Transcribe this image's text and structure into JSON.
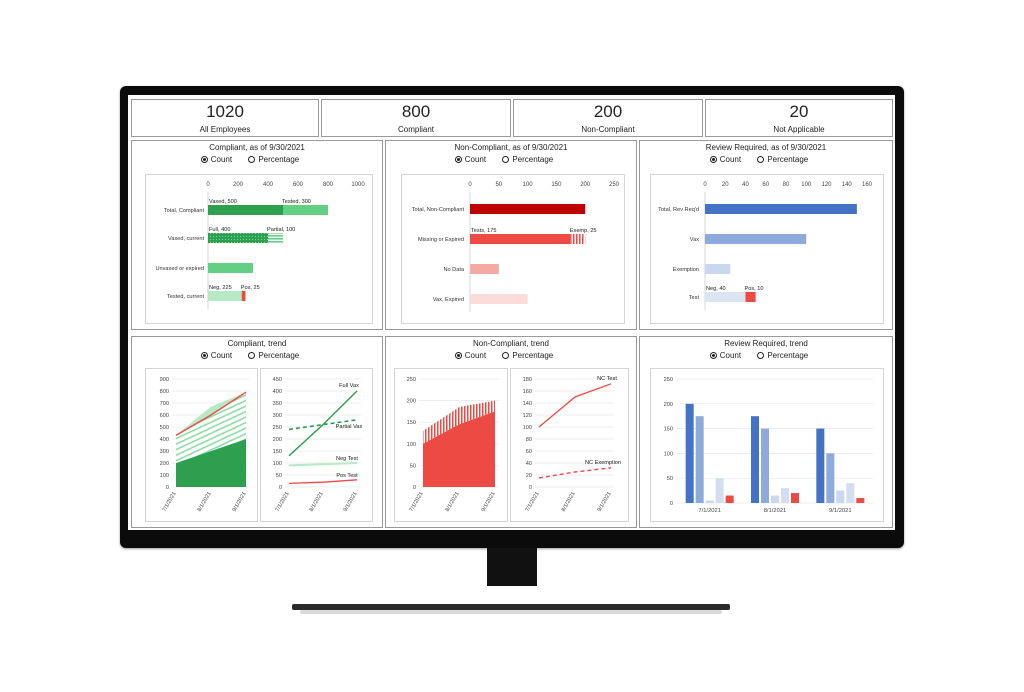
{
  "kpis": [
    {
      "value": "1020",
      "label": "All Employees"
    },
    {
      "value": "800",
      "label": "Compliant"
    },
    {
      "value": "200",
      "label": "Non-Compliant"
    },
    {
      "value": "20",
      "label": "Not Applicable"
    }
  ],
  "radio_labels": {
    "count": "Count",
    "percentage": "Percentage"
  },
  "panels": {
    "compliant": {
      "title": "Compliant, as of 9/30/2021"
    },
    "noncompliant": {
      "title": "Non-Compliant, as of 9/30/2021"
    },
    "review": {
      "title": "Review Required, as of 9/30/2021"
    },
    "compliant_trend": {
      "title": "Compliant, trend"
    },
    "noncompliant_trend": {
      "title": "Non-Compliant, trend"
    },
    "review_trend": {
      "title": "Review Required, trend"
    }
  },
  "colors": {
    "green_dark": "#2e9e4f",
    "green_light": "#63cf85",
    "green_pale": "#b7e9c5",
    "red_dark": "#c00000",
    "red": "#ee4a44",
    "red_pale": "#f9c9c4",
    "blue_dark": "#4472c4",
    "blue_mid": "#8eaadb",
    "blue_pale": "#c9d7ef"
  },
  "chart_data": [
    {
      "type": "bar",
      "orientation": "horizontal",
      "categories": [
        "Total, Compliant",
        "Vaxed, current",
        "Unvaxed or expired",
        "Tested, current"
      ],
      "xlim": [
        0,
        1000
      ],
      "xticks": [
        "0",
        "200",
        "400",
        "600",
        "800",
        "1000"
      ],
      "segments": [
        [
          {
            "value": 500,
            "label": "Vaxed, 500"
          },
          {
            "value": 300,
            "label": "Tested, 300"
          }
        ],
        [
          {
            "value": 400,
            "label": "Full, 400"
          },
          {
            "value": 100,
            "label": "Partial, 100"
          }
        ],
        [
          {
            "value": 300,
            "label": ""
          }
        ],
        [
          {
            "value": 225,
            "label": "Neg, 225"
          },
          {
            "value": 25,
            "label": "Pos, 25"
          }
        ]
      ]
    },
    {
      "type": "bar",
      "orientation": "horizontal",
      "categories": [
        "Total, Non-Compliant",
        "Missing or Expired",
        "No Data",
        "Vax, Expired"
      ],
      "xlim": [
        0,
        250
      ],
      "xticks": [
        "0",
        "50",
        "100",
        "150",
        "200",
        "250"
      ],
      "segments": [
        [
          {
            "value": 200,
            "label": ""
          }
        ],
        [
          {
            "value": 175,
            "label": "Tests, 175"
          },
          {
            "value": 25,
            "label": "Exemp, 25"
          }
        ],
        [
          {
            "value": 50,
            "label": ""
          }
        ],
        [
          {
            "value": 100,
            "label": ""
          }
        ]
      ]
    },
    {
      "type": "bar",
      "orientation": "horizontal",
      "categories": [
        "Total, Rev Req'd",
        "Vax",
        "Exemption",
        "Test"
      ],
      "xlim": [
        0,
        160
      ],
      "xticks": [
        "0",
        "20",
        "40",
        "60",
        "80",
        "100",
        "120",
        "140",
        "160"
      ],
      "segments": [
        [
          {
            "value": 150,
            "label": ""
          }
        ],
        [
          {
            "value": 100,
            "label": ""
          }
        ],
        [
          {
            "value": 25,
            "label": ""
          }
        ],
        [
          {
            "value": 40,
            "label": "Neg, 40"
          },
          {
            "value": 10,
            "label": "Pos, 10"
          }
        ]
      ]
    },
    {
      "type": "area",
      "x": [
        "7/1/2021",
        "8/1/2021",
        "9/1/2021"
      ],
      "ylim": [
        0,
        900
      ],
      "yticks": [
        "0",
        "100",
        "200",
        "300",
        "400",
        "500",
        "600",
        "700",
        "800",
        "900"
      ],
      "series": [
        {
          "values": [
            200,
            300,
            400
          ]
        },
        {
          "values": [
            230,
            370,
            390
          ]
        },
        {
          "values": [
            430,
            600,
            790
          ]
        }
      ]
    },
    {
      "type": "line",
      "x": [
        "7/1/2021",
        "8/1/2021",
        "9/1/2021"
      ],
      "ylim": [
        0,
        450
      ],
      "yticks": [
        "0",
        "50",
        "100",
        "150",
        "200",
        "250",
        "300",
        "350",
        "400",
        "450"
      ],
      "series": [
        {
          "name": "Full Vax",
          "values": [
            130,
            260,
            400
          ]
        },
        {
          "name": "Partial Vax",
          "values": [
            240,
            260,
            280
          ]
        },
        {
          "name": "Neg Test",
          "values": [
            90,
            95,
            100
          ]
        },
        {
          "name": "Pos Test",
          "values": [
            15,
            20,
            30
          ]
        }
      ]
    },
    {
      "type": "area",
      "x": [
        "7/1/2021",
        "8/1/2021",
        "9/1/2021"
      ],
      "ylim": [
        0,
        250
      ],
      "yticks": [
        "0",
        "50",
        "100",
        "150",
        "200",
        "250"
      ],
      "series": [
        {
          "values": [
            100,
            145,
            175
          ]
        },
        {
          "values": [
            30,
            40,
            25
          ]
        }
      ]
    },
    {
      "type": "line",
      "x": [
        "7/1/2021",
        "8/1/2021",
        "9/1/2021"
      ],
      "ylim": [
        0,
        180
      ],
      "yticks": [
        "0",
        "20",
        "40",
        "60",
        "80",
        "100",
        "120",
        "140",
        "160",
        "180"
      ],
      "series": [
        {
          "name": "NC Test",
          "values": [
            100,
            150,
            172
          ]
        },
        {
          "name": "NC Exemption",
          "values": [
            15,
            25,
            32
          ]
        }
      ]
    },
    {
      "type": "bar",
      "categories": [
        "7/1/2021",
        "8/1/2021",
        "9/1/2021"
      ],
      "ylim": [
        0,
        250
      ],
      "yticks": [
        "0",
        "50",
        "100",
        "150",
        "200",
        "250"
      ],
      "series": [
        {
          "values": [
            200,
            175,
            150
          ]
        },
        {
          "values": [
            175,
            150,
            100
          ]
        },
        {
          "values": [
            5,
            15,
            25
          ]
        },
        {
          "values": [
            50,
            30,
            40
          ]
        },
        {
          "values": [
            15,
            20,
            10
          ]
        }
      ]
    }
  ]
}
